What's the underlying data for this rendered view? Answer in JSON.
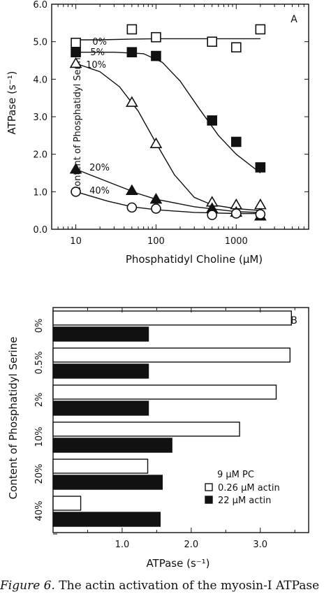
{
  "chart_data": [
    {
      "panel": "A",
      "type": "scatter",
      "xlabel": "Phosphatidyl Choline (µM)",
      "ylabel": "ATPase (s⁻¹)",
      "y_side_label": "Content of Phosphatidyl Serine",
      "x_scale": "log",
      "xlim": [
        5,
        8000
      ],
      "ylim": [
        0.0,
        6.0
      ],
      "x_ticks": [
        "10",
        "100",
        "1000"
      ],
      "x_tick_values": [
        10,
        100,
        1000
      ],
      "y_ticks": [
        "0.0",
        "1.0",
        "2.0",
        "3.0",
        "4.0",
        "5.0",
        "6.0"
      ],
      "y_tick_values": [
        0,
        1,
        2,
        3,
        4,
        5,
        6
      ],
      "series": [
        {
          "name": "0%",
          "marker": "open-square",
          "x": [
            10,
            50,
            100,
            500,
            1000,
            2000
          ],
          "y": [
            4.97,
            5.33,
            5.12,
            5.0,
            4.85,
            5.33
          ],
          "curve": [
            [
              10,
              5.05
            ],
            [
              20,
              5.05
            ],
            [
              50,
              5.07
            ],
            [
              100,
              5.08
            ],
            [
              300,
              5.08
            ],
            [
              1000,
              5.08
            ],
            [
              2000,
              5.08
            ]
          ]
        },
        {
          "name": "5%",
          "marker": "filled-square",
          "x": [
            10,
            50,
            100,
            500,
            1000,
            2000
          ],
          "y": [
            4.72,
            4.72,
            4.62,
            2.9,
            2.33,
            1.65
          ],
          "curve": [
            [
              10,
              4.72
            ],
            [
              30,
              4.72
            ],
            [
              70,
              4.68
            ],
            [
              120,
              4.45
            ],
            [
              200,
              3.95
            ],
            [
              350,
              3.2
            ],
            [
              600,
              2.5
            ],
            [
              1000,
              2.0
            ],
            [
              2000,
              1.5
            ]
          ]
        },
        {
          "name": "10%",
          "marker": "open-triangle",
          "x": [
            10,
            50,
            100,
            500,
            1000,
            2000
          ],
          "y": [
            4.42,
            3.38,
            2.28,
            0.72,
            0.65,
            0.65
          ],
          "curve": [
            [
              10,
              4.42
            ],
            [
              20,
              4.2
            ],
            [
              35,
              3.8
            ],
            [
              60,
              3.15
            ],
            [
              100,
              2.3
            ],
            [
              170,
              1.45
            ],
            [
              300,
              0.85
            ],
            [
              500,
              0.65
            ],
            [
              1000,
              0.55
            ],
            [
              2000,
              0.5
            ]
          ]
        },
        {
          "name": "20%",
          "marker": "filled-triangle",
          "x": [
            10,
            50,
            100,
            500,
            1000,
            2000
          ],
          "y": [
            1.6,
            1.03,
            0.8,
            0.55,
            0.45,
            0.35
          ],
          "curve": [
            [
              10,
              1.6
            ],
            [
              30,
              1.2
            ],
            [
              60,
              0.95
            ],
            [
              100,
              0.8
            ],
            [
              300,
              0.6
            ],
            [
              1000,
              0.47
            ],
            [
              2000,
              0.45
            ]
          ]
        },
        {
          "name": "40%",
          "marker": "open-circle",
          "x": [
            10,
            50,
            100,
            500,
            1000,
            2000
          ],
          "y": [
            1.0,
            0.58,
            0.55,
            0.38,
            0.42,
            0.4
          ],
          "curve": [
            [
              10,
              1.0
            ],
            [
              25,
              0.75
            ],
            [
              50,
              0.6
            ],
            [
              100,
              0.52
            ],
            [
              300,
              0.45
            ],
            [
              1000,
              0.42
            ],
            [
              2000,
              0.42
            ]
          ]
        }
      ]
    },
    {
      "panel": "B",
      "type": "bar",
      "orientation": "horizontal",
      "xlabel": "ATPase (s⁻¹)",
      "ylabel": "Content of Phosphatidyl Serine",
      "xlim": [
        0,
        3.7
      ],
      "x_ticks": [
        "1.0",
        "2.0",
        "3.0"
      ],
      "x_tick_values": [
        1,
        2,
        3
      ],
      "categories": [
        "0%",
        "0.5%",
        "2%",
        "10%",
        "20%",
        "40%"
      ],
      "legend": {
        "title": "9 µM PC",
        "placement": "bottom-right"
      },
      "series": [
        {
          "name": "0.26 µM actin",
          "fill": "#ffffff",
          "values": [
            3.45,
            3.43,
            3.23,
            2.7,
            1.37,
            0.4
          ]
        },
        {
          "name": "22 µM actin",
          "fill": "#111111",
          "values": [
            1.38,
            1.38,
            1.38,
            1.72,
            1.58,
            1.55
          ]
        }
      ]
    }
  ],
  "caption": {
    "lead": "Figure 6.",
    "text": "The actin activation of the myosin-I ATPase"
  }
}
